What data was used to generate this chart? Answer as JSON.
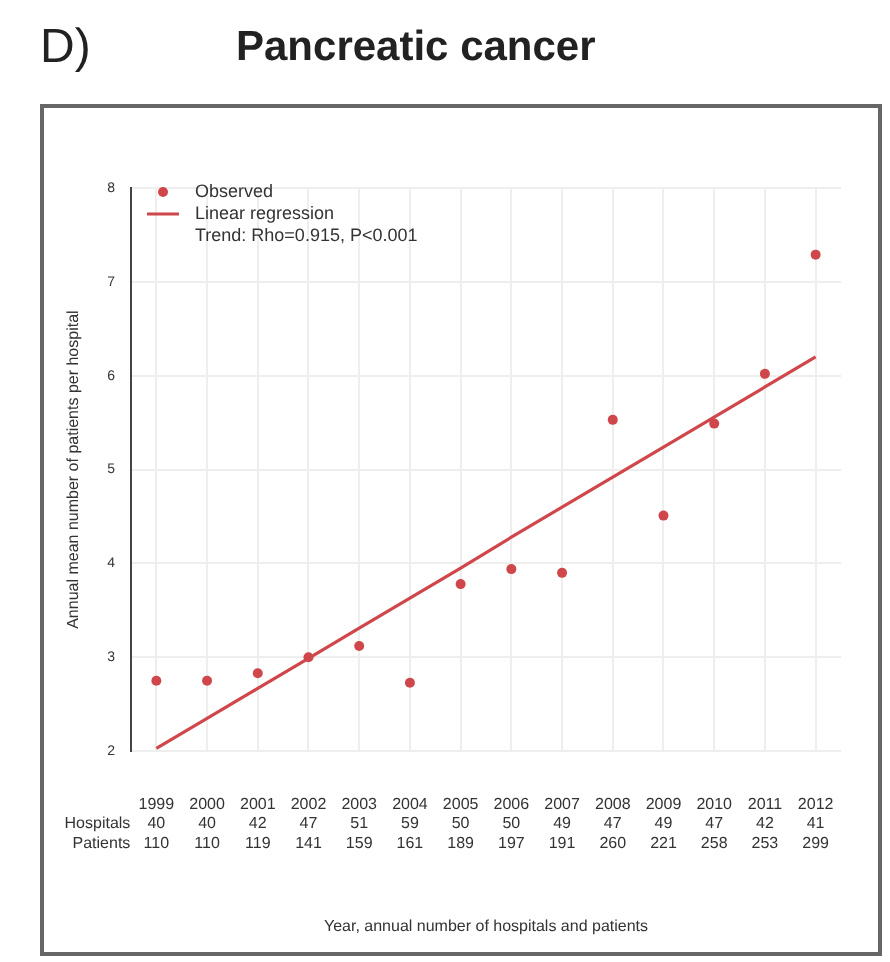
{
  "chart_data": {
    "type": "scatter",
    "title": "Pancreatic cancer",
    "xlabel": "Year, annual number of hospitals and patients",
    "ylabel": "Annual mean number of patients per hospital",
    "categories": [
      "1999\n40\n110",
      "2000\n40\n110",
      "2001\n42\n119",
      "2002\n47\n141",
      "2003\n51\n159",
      "2004\n59\n161",
      "2005\n50\n189",
      "2006\n50\n197",
      "2007\n49\n191",
      "2008\n47\n260",
      "2009\n49\n221",
      "2010\n47\n258",
      "2011\n42\n253",
      "2012\n41\n299"
    ],
    "series": [
      {
        "name": "Observed",
        "color": "#d0474b",
        "marker": "circle",
        "values": [
          2.75,
          2.75,
          2.83,
          3.0,
          3.12,
          2.73,
          3.78,
          3.94,
          3.9,
          5.53,
          4.51,
          5.49,
          6.02,
          7.29
        ]
      },
      {
        "name": "Linear regression",
        "type": "line",
        "color": "#d0474b",
        "marker": "none",
        "line_style": "solid",
        "values": [
          2.03,
          2.35,
          2.67,
          2.99,
          3.31,
          3.63,
          3.95,
          4.28,
          4.6,
          4.92,
          5.24,
          5.56,
          5.88,
          6.2
        ]
      }
    ],
    "ylim": [
      2,
      8
    ],
    "yticks": [
      2,
      3,
      4,
      5,
      6,
      7,
      8
    ],
    "grid": true,
    "legend": "top left",
    "annotations": [
      "D)",
      "Trend: Rho=0.915, P<0.001",
      "Hospitals",
      "Patients"
    ]
  }
}
